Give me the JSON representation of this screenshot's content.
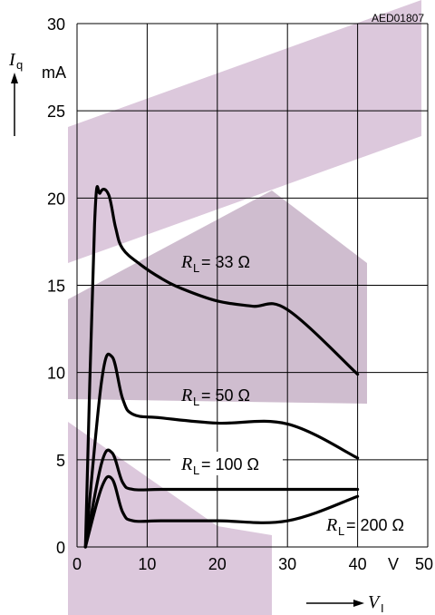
{
  "document_code": "AED01807",
  "chart_data": {
    "type": "line",
    "xlim": [
      0,
      50
    ],
    "ylim": [
      0,
      30
    ],
    "x_ticks": [
      "0",
      "10",
      "20",
      "30",
      "40",
      "50"
    ],
    "y_ticks": [
      "0",
      "5",
      "10",
      "15",
      "20",
      "25",
      "30"
    ],
    "x_unit": "V",
    "y_unit": "mA",
    "xlabel": {
      "symbol": "V",
      "subscript": "I"
    },
    "ylabel": {
      "symbol": "I",
      "subscript": "q"
    },
    "grid": true,
    "series": [
      {
        "name": "RL = 33 Ω",
        "label": {
          "symbol": "R",
          "subscript": "L",
          "text": "= 33 Ω"
        },
        "x": [
          1.2,
          2.5,
          3.3,
          4.5,
          5.5,
          6.5,
          9,
          12,
          15,
          20,
          25,
          30,
          40
        ],
        "y": [
          0,
          18.5,
          20.3,
          20.2,
          18.3,
          17.1,
          16.2,
          15.4,
          14.8,
          14.1,
          13.8,
          13.6,
          9.9
        ]
      },
      {
        "name": "RL = 50 Ω",
        "label": {
          "symbol": "R",
          "subscript": "L",
          "text": "= 50 Ω"
        },
        "x": [
          1.2,
          3.5,
          5,
          6.5,
          8,
          12,
          20,
          30,
          40
        ],
        "y": [
          0,
          9.5,
          10.9,
          8.5,
          7.6,
          7.4,
          7.1,
          7.05,
          5.1
        ]
      },
      {
        "name": "RL = 100 Ω",
        "label": {
          "symbol": "R",
          "subscript": "L",
          "text": "= 100 Ω"
        },
        "x": [
          1.2,
          3.5,
          5,
          6.5,
          8,
          12,
          20,
          30,
          40
        ],
        "y": [
          0,
          4.8,
          5.4,
          3.7,
          3.3,
          3.3,
          3.3,
          3.3,
          3.3
        ]
      },
      {
        "name": "RL = 200 Ω",
        "label": {
          "symbol": "R",
          "subscript": "L",
          "text": "= 200 Ω"
        },
        "x": [
          1.2,
          3.5,
          5,
          6.5,
          8,
          12,
          20,
          30,
          40
        ],
        "y": [
          0,
          3.4,
          3.9,
          2.0,
          1.5,
          1.5,
          1.5,
          1.5,
          2.9
        ]
      }
    ]
  }
}
